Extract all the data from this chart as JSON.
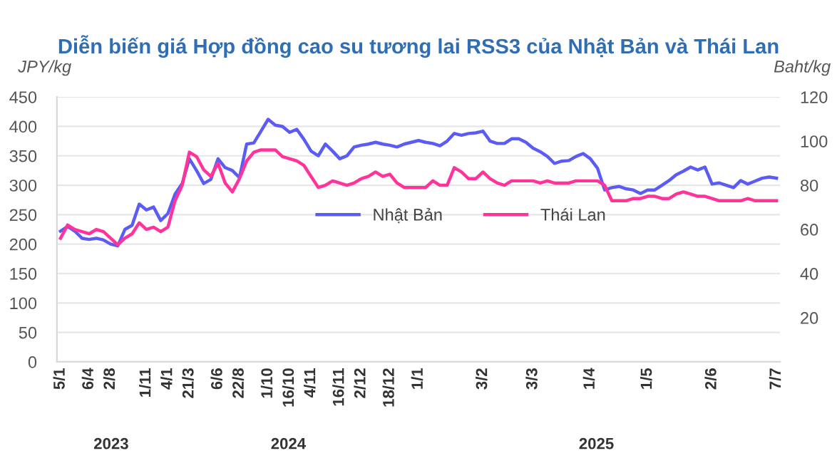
{
  "chart_data": {
    "type": "line",
    "title": "Diễn biến giá Hợp đồng cao su tương lai RSS3 của Nhật Bản và Thái Lan",
    "ylabel": "JPY/kg",
    "y2label": "Baht/kg",
    "categories": [
      "5/1",
      null,
      null,
      null,
      "6/4",
      null,
      null,
      "2/8",
      null,
      null,
      null,
      null,
      "1/11",
      null,
      null,
      "4/1",
      null,
      null,
      "21/3",
      null,
      null,
      null,
      "6/6",
      null,
      null,
      "22/8",
      null,
      null,
      null,
      "1/10",
      null,
      null,
      "16/10",
      null,
      null,
      "4/11",
      null,
      null,
      null,
      "16/11",
      null,
      null,
      "2/12",
      null,
      null,
      null,
      "18/12",
      null,
      null,
      null,
      "1/1",
      null,
      null,
      null,
      null,
      null,
      null,
      null,
      null,
      "3/2",
      null,
      null,
      null,
      null,
      null,
      null,
      "3/3",
      null,
      null,
      null,
      null,
      null,
      null,
      null,
      "1/4",
      null,
      null,
      null,
      null,
      null,
      null,
      null,
      "1/5",
      null,
      null,
      null,
      null,
      null,
      null,
      null,
      null,
      "2/6",
      null,
      null,
      null,
      null,
      null,
      null,
      null,
      null,
      "7/7"
    ],
    "series": [
      {
        "name": "Nhật Bản",
        "color": "#5a5cf5",
        "values": [
          222,
          230,
          222,
          210,
          208,
          210,
          207,
          200,
          197,
          225,
          232,
          268,
          258,
          263,
          240,
          252,
          285,
          303,
          345,
          325,
          303,
          310,
          345,
          330,
          325,
          313,
          370,
          372,
          392,
          412,
          402,
          400,
          390,
          395,
          378,
          358,
          350,
          370,
          358,
          345,
          350,
          365,
          368,
          370,
          373,
          370,
          368,
          365,
          370,
          373,
          376,
          373,
          371,
          367,
          375,
          388,
          385,
          388,
          389,
          392,
          375,
          371,
          371,
          379,
          379,
          373,
          363,
          357,
          349,
          337,
          341,
          342,
          349,
          354,
          345,
          329,
          292,
          296,
          298,
          294,
          292,
          286,
          292,
          292,
          300,
          308,
          318,
          324,
          331,
          326,
          331,
          302,
          304,
          300,
          296,
          308,
          302,
          307,
          312,
          314,
          312
        ]
      },
      {
        "name": "Thái Lan",
        "color": "#ff3399",
        "axis": "y2",
        "values": [
          56,
          62,
          60,
          59,
          58,
          60,
          59,
          56,
          53,
          56,
          58,
          63,
          60,
          61,
          59,
          61,
          73,
          80,
          95,
          93,
          87,
          84,
          90,
          81,
          77,
          83,
          91,
          95,
          96,
          96,
          96,
          93,
          92,
          91,
          89,
          84,
          79,
          80,
          82,
          81,
          80,
          81,
          83,
          84,
          86,
          84,
          85,
          81,
          79,
          79,
          79,
          79,
          82,
          80,
          80,
          88,
          86,
          83,
          83,
          86,
          83,
          81,
          80,
          82,
          82,
          82,
          82,
          81,
          82,
          81,
          81,
          81,
          82,
          82,
          82,
          82,
          80,
          73,
          73,
          73,
          74,
          74,
          75,
          75,
          74,
          74,
          76,
          77,
          76,
          75,
          75,
          74,
          73,
          73,
          73,
          73,
          74,
          73,
          73,
          73,
          73
        ]
      }
    ],
    "ylim": [
      0,
      450
    ],
    "yticks": [
      0,
      50,
      100,
      150,
      200,
      250,
      300,
      350,
      400,
      450
    ],
    "y2lim": [
      0,
      120
    ],
    "y2ticks": [
      20,
      40,
      60,
      80,
      100,
      120
    ],
    "grid": "y",
    "legend": "center right",
    "annotations": [
      "2023",
      "2024",
      "2025"
    ]
  }
}
